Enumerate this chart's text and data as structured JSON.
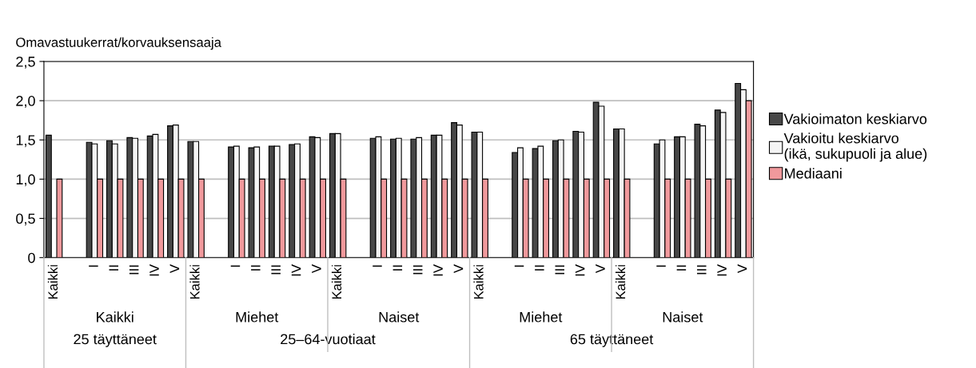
{
  "chart_data": {
    "type": "bar",
    "ylabel": "Omavastuukerrat/korvauksensaaja",
    "categories": [
      "Kaikki",
      null,
      "I",
      "II",
      "III",
      "IV",
      "V",
      "Kaikki",
      null,
      "I",
      "II",
      "III",
      "IV",
      "V",
      "Kaikki",
      null,
      "I",
      "II",
      "III",
      "IV",
      "V",
      "Kaikki",
      null,
      "I",
      "II",
      "III",
      "IV",
      "V",
      "Kaikki",
      null,
      "I",
      "II",
      "III",
      "IV",
      "V"
    ],
    "series": [
      {
        "name": "Vakioimaton keskiarvo",
        "color": "#474747",
        "values": [
          1.56,
          null,
          1.47,
          1.49,
          1.53,
          1.55,
          1.68,
          1.48,
          null,
          1.41,
          1.4,
          1.42,
          1.44,
          1.54,
          1.58,
          null,
          1.52,
          1.51,
          1.51,
          1.56,
          1.72,
          1.6,
          null,
          1.34,
          1.39,
          1.49,
          1.61,
          1.98,
          1.64,
          null,
          1.45,
          1.54,
          1.7,
          1.88,
          2.22
        ]
      },
      {
        "name": "Vakioitu keskiarvo\n(ikä, sukupuoli ja alue)",
        "color": "#f5f5f5",
        "values": [
          null,
          null,
          1.45,
          1.45,
          1.52,
          1.57,
          1.69,
          1.48,
          null,
          1.42,
          1.41,
          1.42,
          1.45,
          1.53,
          1.58,
          null,
          1.54,
          1.52,
          1.53,
          1.56,
          1.69,
          1.6,
          null,
          1.4,
          1.42,
          1.5,
          1.6,
          1.93,
          1.64,
          null,
          1.5,
          1.54,
          1.68,
          1.85,
          2.14
        ]
      },
      {
        "name": "Mediaani",
        "color": "#f0999c",
        "values": [
          1.0,
          null,
          1.0,
          1.0,
          1.0,
          1.0,
          1.0,
          1.0,
          null,
          1.0,
          1.0,
          1.0,
          1.0,
          1.0,
          1.0,
          null,
          1.0,
          1.0,
          1.0,
          1.0,
          1.0,
          1.0,
          null,
          1.0,
          1.0,
          1.0,
          1.0,
          1.0,
          1.0,
          null,
          1.0,
          1.0,
          1.0,
          1.0,
          2.0
        ]
      }
    ],
    "annotations": [
      "Kaikki",
      "Miehet",
      "Naiset",
      "Miehet",
      "Naiset",
      "25 täyttäneet",
      "25–64-vuotiaat",
      "65 täyttäneet"
    ],
    "ylim": [
      0,
      2.5
    ],
    "yticks": [
      0,
      {
        "value": 0.5,
        "label": "0,5"
      },
      {
        "value": 1.0,
        "label": "1,0"
      },
      {
        "value": 1.5,
        "label": "1,5"
      },
      {
        "value": 2.0,
        "label": "2,0"
      },
      {
        "value": 2.5,
        "label": "2,5"
      }
    ],
    "grid": "y",
    "legend": "right"
  }
}
